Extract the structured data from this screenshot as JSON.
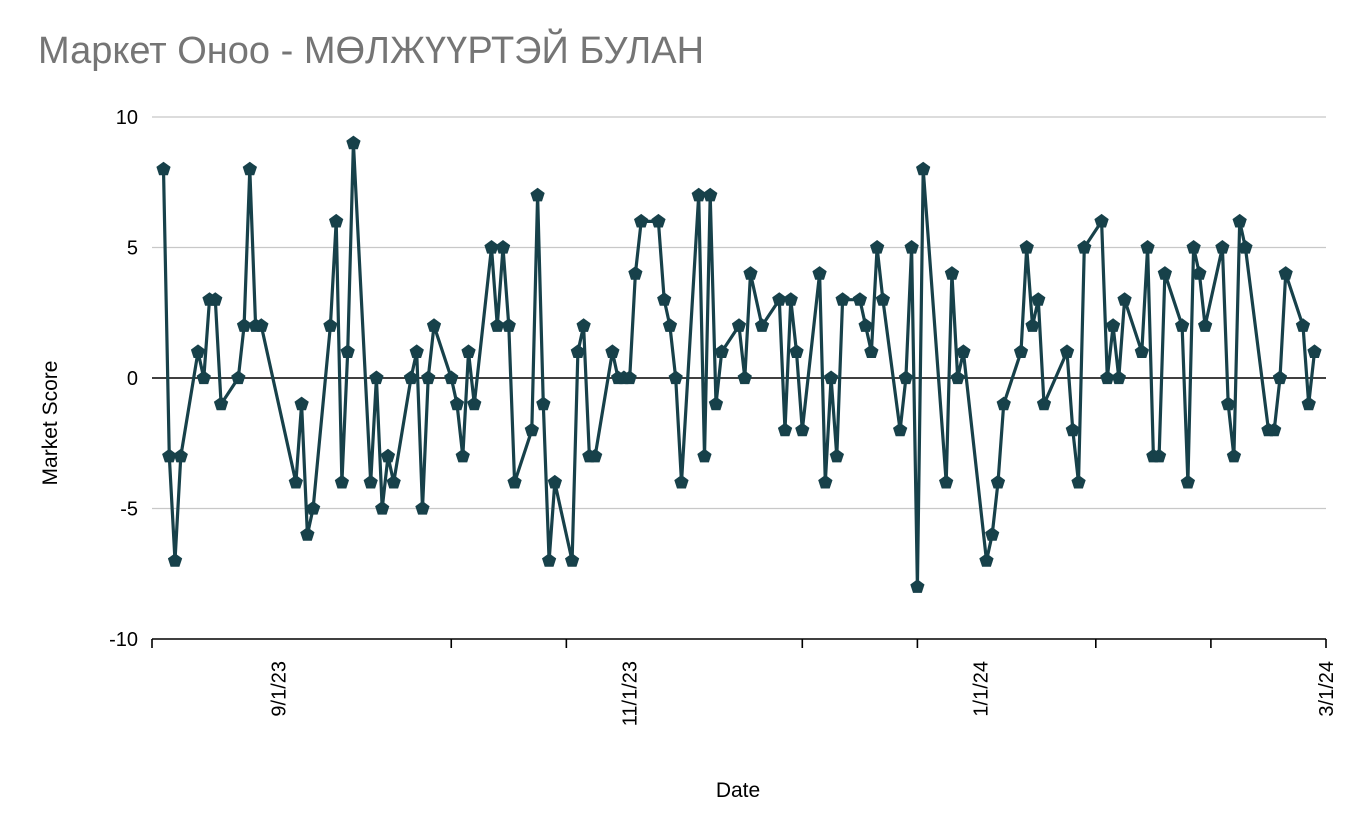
{
  "chart_data": {
    "type": "line",
    "title": "Маркет Оноо - МӨЛЖҮҮРТЭЙ БУЛАН",
    "xlabel": "Date",
    "ylabel": "Market Score",
    "ylim": [
      -10,
      10
    ],
    "yticks": [
      {
        "value": 10,
        "label": "10"
      },
      {
        "value": 5,
        "label": "5"
      },
      {
        "value": 0,
        "label": "0"
      },
      {
        "value": -5,
        "label": "-5"
      },
      {
        "value": -10,
        "label": "-10"
      }
    ],
    "xlim": [
      "2023-08-10",
      "2024-03-01"
    ],
    "xticks": [
      {
        "date": "2023-09-01",
        "label": "9/1/23"
      },
      {
        "date": "2023-11-01",
        "label": "11/1/23"
      },
      {
        "date": "2024-01-01",
        "label": "1/1/24"
      },
      {
        "date": "2024-03-01",
        "label": "3/1/24"
      }
    ],
    "xminor_ticks": [
      "2023-08-10",
      "2023-10-01",
      "2023-10-21",
      "2023-12-01",
      "2023-12-21",
      "2024-01-21",
      "2024-02-10",
      "2024-03-01"
    ],
    "grid": true,
    "legend": "none",
    "colors": {
      "series": "#17414a",
      "grid": "#c8c8c8",
      "zero_line": "#000000",
      "axis": "#000000"
    },
    "marker": "pentagon",
    "series": [
      {
        "values": [
          [
            "2023-08-12",
            8
          ],
          [
            "2023-08-13",
            -3
          ],
          [
            "2023-08-14",
            -7
          ],
          [
            "2023-08-15",
            -3
          ],
          [
            "2023-08-18",
            1
          ],
          [
            "2023-08-19",
            0
          ],
          [
            "2023-08-20",
            3
          ],
          [
            "2023-08-21",
            3
          ],
          [
            "2023-08-22",
            -1
          ],
          [
            "2023-08-25",
            0
          ],
          [
            "2023-08-26",
            2
          ],
          [
            "2023-08-27",
            8
          ],
          [
            "2023-08-28",
            2
          ],
          [
            "2023-08-29",
            2
          ],
          [
            "2023-09-04",
            -4
          ],
          [
            "2023-09-05",
            -1
          ],
          [
            "2023-09-06",
            -6
          ],
          [
            "2023-09-07",
            -5
          ],
          [
            "2023-09-10",
            2
          ],
          [
            "2023-09-11",
            6
          ],
          [
            "2023-09-12",
            -4
          ],
          [
            "2023-09-13",
            1
          ],
          [
            "2023-09-14",
            9
          ],
          [
            "2023-09-17",
            -4
          ],
          [
            "2023-09-18",
            0
          ],
          [
            "2023-09-19",
            -5
          ],
          [
            "2023-09-20",
            -3
          ],
          [
            "2023-09-21",
            -4
          ],
          [
            "2023-09-24",
            0
          ],
          [
            "2023-09-25",
            1
          ],
          [
            "2023-09-26",
            -5
          ],
          [
            "2023-09-27",
            0
          ],
          [
            "2023-09-28",
            2
          ],
          [
            "2023-10-01",
            0
          ],
          [
            "2023-10-02",
            -1
          ],
          [
            "2023-10-03",
            -3
          ],
          [
            "2023-10-04",
            1
          ],
          [
            "2023-10-05",
            -1
          ],
          [
            "2023-10-08",
            5
          ],
          [
            "2023-10-09",
            2
          ],
          [
            "2023-10-10",
            5
          ],
          [
            "2023-10-11",
            2
          ],
          [
            "2023-10-12",
            -4
          ],
          [
            "2023-10-15",
            -2
          ],
          [
            "2023-10-16",
            7
          ],
          [
            "2023-10-17",
            -1
          ],
          [
            "2023-10-18",
            -7
          ],
          [
            "2023-10-19",
            -4
          ],
          [
            "2023-10-22",
            -7
          ],
          [
            "2023-10-23",
            1
          ],
          [
            "2023-10-24",
            2
          ],
          [
            "2023-10-25",
            -3
          ],
          [
            "2023-10-26",
            -3
          ],
          [
            "2023-10-29",
            1
          ],
          [
            "2023-10-30",
            0
          ],
          [
            "2023-10-31",
            0
          ],
          [
            "2023-11-01",
            0
          ],
          [
            "2023-11-02",
            4
          ],
          [
            "2023-11-03",
            6
          ],
          [
            "2023-11-06",
            6
          ],
          [
            "2023-11-07",
            3
          ],
          [
            "2023-11-08",
            2
          ],
          [
            "2023-11-09",
            0
          ],
          [
            "2023-11-10",
            -4
          ],
          [
            "2023-11-13",
            7
          ],
          [
            "2023-11-14",
            -3
          ],
          [
            "2023-11-15",
            7
          ],
          [
            "2023-11-16",
            -1
          ],
          [
            "2023-11-17",
            1
          ],
          [
            "2023-11-20",
            2
          ],
          [
            "2023-11-21",
            0
          ],
          [
            "2023-11-22",
            4
          ],
          [
            "2023-11-24",
            2
          ],
          [
            "2023-11-27",
            3
          ],
          [
            "2023-11-28",
            -2
          ],
          [
            "2023-11-29",
            3
          ],
          [
            "2023-11-30",
            1
          ],
          [
            "2023-12-01",
            -2
          ],
          [
            "2023-12-04",
            4
          ],
          [
            "2023-12-05",
            -4
          ],
          [
            "2023-12-06",
            0
          ],
          [
            "2023-12-07",
            -3
          ],
          [
            "2023-12-08",
            3
          ],
          [
            "2023-12-11",
            3
          ],
          [
            "2023-12-12",
            2
          ],
          [
            "2023-12-13",
            1
          ],
          [
            "2023-12-14",
            5
          ],
          [
            "2023-12-15",
            3
          ],
          [
            "2023-12-18",
            -2
          ],
          [
            "2023-12-19",
            0
          ],
          [
            "2023-12-20",
            5
          ],
          [
            "2023-12-21",
            -8
          ],
          [
            "2023-12-22",
            8
          ],
          [
            "2023-12-26",
            -4
          ],
          [
            "2023-12-27",
            4
          ],
          [
            "2023-12-28",
            0
          ],
          [
            "2023-12-29",
            1
          ],
          [
            "2024-01-02",
            -7
          ],
          [
            "2024-01-03",
            -6
          ],
          [
            "2024-01-04",
            -4
          ],
          [
            "2024-01-05",
            -1
          ],
          [
            "2024-01-08",
            1
          ],
          [
            "2024-01-09",
            5
          ],
          [
            "2024-01-10",
            2
          ],
          [
            "2024-01-11",
            3
          ],
          [
            "2024-01-12",
            -1
          ],
          [
            "2024-01-16",
            1
          ],
          [
            "2024-01-17",
            -2
          ],
          [
            "2024-01-18",
            -4
          ],
          [
            "2024-01-19",
            5
          ],
          [
            "2024-01-22",
            6
          ],
          [
            "2024-01-23",
            0
          ],
          [
            "2024-01-24",
            2
          ],
          [
            "2024-01-25",
            0
          ],
          [
            "2024-01-26",
            3
          ],
          [
            "2024-01-29",
            1
          ],
          [
            "2024-01-30",
            5
          ],
          [
            "2024-01-31",
            -3
          ],
          [
            "2024-02-01",
            -3
          ],
          [
            "2024-02-02",
            4
          ],
          [
            "2024-02-05",
            2
          ],
          [
            "2024-02-06",
            -4
          ],
          [
            "2024-02-07",
            5
          ],
          [
            "2024-02-08",
            4
          ],
          [
            "2024-02-09",
            2
          ],
          [
            "2024-02-12",
            5
          ],
          [
            "2024-02-13",
            -1
          ],
          [
            "2024-02-14",
            -3
          ],
          [
            "2024-02-15",
            6
          ],
          [
            "2024-02-16",
            5
          ],
          [
            "2024-02-20",
            -2
          ],
          [
            "2024-02-21",
            -2
          ],
          [
            "2024-02-22",
            0
          ],
          [
            "2024-02-23",
            4
          ],
          [
            "2024-02-26",
            2
          ],
          [
            "2024-02-27",
            -1
          ],
          [
            "2024-02-28",
            1
          ]
        ]
      }
    ]
  }
}
